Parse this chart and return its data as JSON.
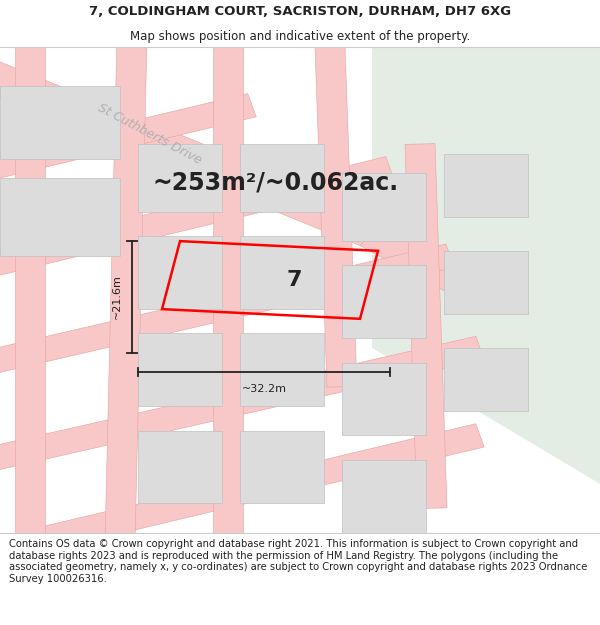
{
  "title_line1": "7, COLDINGHAM COURT, SACRISTON, DURHAM, DH7 6XG",
  "title_line2": "Map shows position and indicative extent of the property.",
  "footer_text": "Contains OS data © Crown copyright and database right 2021. This information is subject to Crown copyright and database rights 2023 and is reproduced with the permission of HM Land Registry. The polygons (including the associated geometry, namely x, y co-ordinates) are subject to Crown copyright and database rights 2023 Ordnance Survey 100026316.",
  "area_label": "~253m²/~0.062ac.",
  "property_number": "7",
  "width_label": "~32.2m",
  "height_label": "~21.6m",
  "bg_color": "#ffffff",
  "map_bg": "#f2f2f2",
  "road_fill": "#f8c8c8",
  "road_edge": "#e8a0a0",
  "block_fill": "#dcdcdc",
  "block_edge": "#c0c0c0",
  "green_fill": "#e4ede4",
  "property_edge": "#ff0000",
  "dim_color": "#222222",
  "text_dark": "#222222",
  "road_label_color": "#b0b0b0",
  "street_label": "St Cuthberts Drive",
  "title_fontsize": 9.5,
  "subtitle_fontsize": 8.5,
  "footer_fontsize": 7.2,
  "area_fontsize": 17,
  "dim_fontsize": 8,
  "num_fontsize": 16,
  "road_label_fontsize": 9
}
